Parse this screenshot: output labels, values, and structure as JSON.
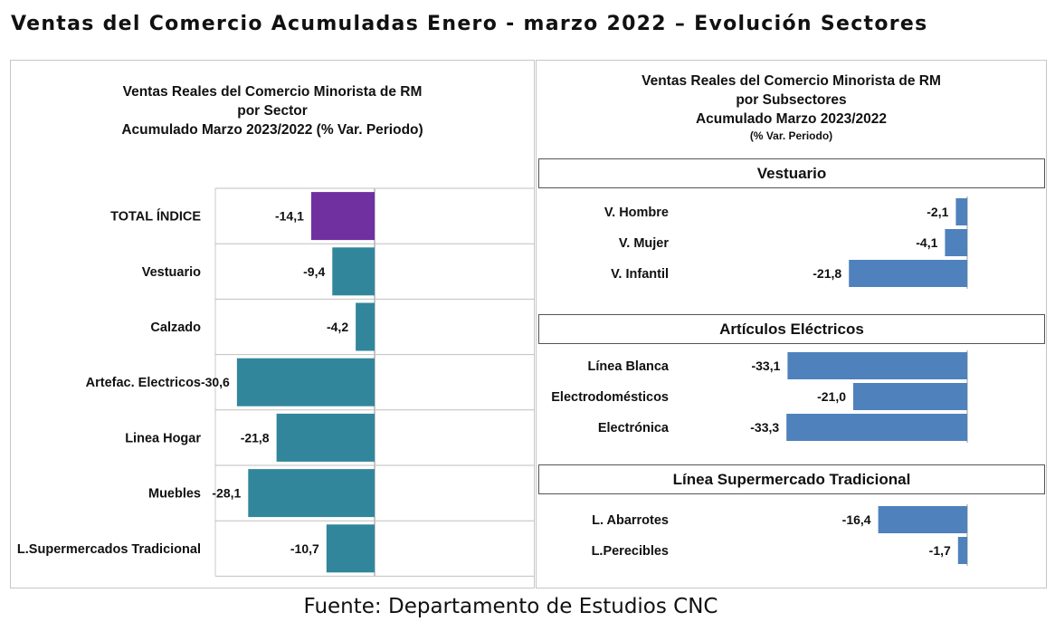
{
  "page": {
    "title": "Ventas del Comercio Acumuladas Enero - marzo 2022 – Evolución Sectores",
    "source": "Fuente: Departamento de Estudios CNC"
  },
  "chart_data": [
    {
      "type": "bar",
      "orientation": "horizontal",
      "title_lines": [
        "Ventas Reales del Comercio Minorista de RM",
        "por Sector",
        "Acumulado Marzo 2023/2022 (% Var. Periodo)"
      ],
      "categories": [
        "TOTAL ÍNDICE",
        "Vestuario",
        "Calzado",
        "Artefac. Electricos",
        "Linea Hogar",
        "Muebles",
        "L.Supermercados Tradicional"
      ],
      "values": [
        -14.1,
        -9.4,
        -4.2,
        -30.6,
        -21.8,
        -28.1,
        -10.7
      ],
      "value_labels": [
        "-14,1",
        "-9,4",
        "-4,2",
        "-30,6",
        "-21,8",
        "-28,1",
        "-10,7"
      ],
      "colors": [
        "#7030a0",
        "#31869b",
        "#31869b",
        "#31869b",
        "#31869b",
        "#31869b",
        "#31869b"
      ],
      "xlim": [
        -35,
        0
      ],
      "grid": true,
      "legend": "none"
    },
    {
      "type": "bar",
      "orientation": "horizontal",
      "title_lines": [
        "Ventas Reales del Comercio Minorista de RM",
        "por Subsectores",
        "Acumulado Marzo 2023/2022"
      ],
      "subtitle": "(% Var. Periodo)",
      "color": "#4f81bd",
      "xlim": [
        -35,
        0
      ],
      "grid": false,
      "legend": "none",
      "groups": [
        {
          "name": "Vestuario",
          "categories": [
            "V. Hombre",
            "V. Mujer",
            "V. Infantil"
          ],
          "values": [
            -2.1,
            -4.1,
            -21.8
          ],
          "value_labels": [
            "-2,1",
            "-4,1",
            "-21,8"
          ]
        },
        {
          "name": "Artículos Eléctricos",
          "categories": [
            "Línea Blanca",
            "Electrodomésticos",
            "Electrónica"
          ],
          "values": [
            -33.1,
            -21.0,
            -33.3
          ],
          "value_labels": [
            "-33,1",
            "-21,0",
            "-33,3"
          ]
        },
        {
          "name": "Línea  Supermercado Tradicional",
          "categories": [
            "L. Abarrotes",
            "L.Perecibles"
          ],
          "values": [
            -16.4,
            -1.7
          ],
          "value_labels": [
            "-16,4",
            "-1,7"
          ]
        }
      ]
    }
  ]
}
